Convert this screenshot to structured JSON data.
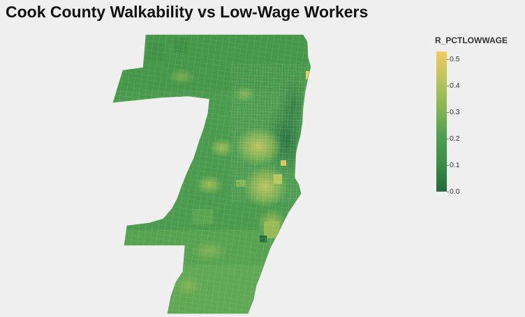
{
  "title": "Cook County Walkability vs Low-Wage Workers",
  "legend": {
    "title": "R_PCTLOWWAGE",
    "min": 0.0,
    "max": 0.53,
    "ticks": [
      "0.0",
      "0.1",
      "0.2",
      "0.3",
      "0.4",
      "0.5"
    ],
    "tick_values": [
      0.0,
      0.1,
      0.2,
      0.3,
      0.4,
      0.5
    ],
    "colors": {
      "low": "#1f6b3a",
      "mid1": "#3a8f48",
      "mid2": "#4ea04f",
      "mid3": "#86b653",
      "high1": "#b9c45a",
      "high": "#f2cb5c"
    }
  },
  "map": {
    "region": "Cook County",
    "lake_side": "east"
  }
}
